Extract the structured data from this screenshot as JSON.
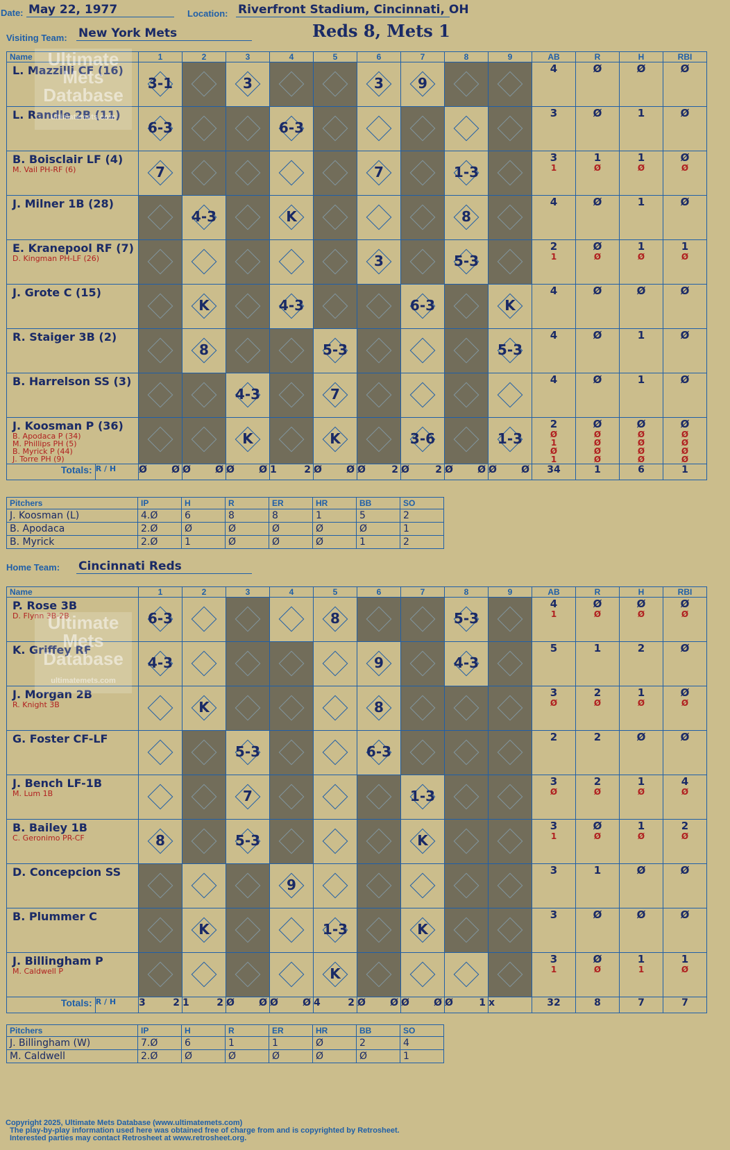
{
  "header": {
    "date_label": "Date:",
    "date": "May 22, 1977",
    "location_label": "Location:",
    "location": "Riverfront Stadium, Cincinnati, OH",
    "visiting_label": "Visiting Team:",
    "visiting_team": "New York Mets",
    "title": "Reds 8, Mets 1",
    "home_label": "Home Team:",
    "home_team": "Cincinnati Reds"
  },
  "cols": {
    "name": "Name",
    "innings": [
      "1",
      "2",
      "3",
      "4",
      "5",
      "6",
      "7",
      "8",
      "9"
    ],
    "ab": "AB",
    "r": "R",
    "h": "H",
    "rbi": "RBI",
    "totals": "Totals:",
    "r_lbl": "R",
    "h_lbl": "H"
  },
  "visitors": {
    "rows": [
      {
        "name": "L. Mazzilli CF (16)",
        "subs": [],
        "ab": [
          "4"
        ],
        "r": [
          "Ø"
        ],
        "h": [
          "Ø"
        ],
        "rbi": [
          "Ø"
        ]
      },
      {
        "name": "L. Randle 2B (11)",
        "subs": [],
        "ab": [
          "3"
        ],
        "r": [
          "Ø"
        ],
        "h": [
          "1"
        ],
        "rbi": [
          "Ø"
        ]
      },
      {
        "name": "B. Boisclair LF (4)",
        "subs": [
          "M. Vail PH-RF (6)"
        ],
        "ab": [
          "3",
          "1"
        ],
        "r": [
          "1",
          "Ø"
        ],
        "h": [
          "1",
          "Ø"
        ],
        "rbi": [
          "Ø",
          "Ø"
        ]
      },
      {
        "name": "J. Milner 1B (28)",
        "subs": [],
        "ab": [
          "4"
        ],
        "r": [
          "Ø"
        ],
        "h": [
          "1"
        ],
        "rbi": [
          "Ø"
        ]
      },
      {
        "name": "E. Kranepool RF (7)",
        "subs": [
          "D. Kingman PH-LF (26)"
        ],
        "ab": [
          "2",
          "1"
        ],
        "r": [
          "Ø",
          "Ø"
        ],
        "h": [
          "1",
          "Ø"
        ],
        "rbi": [
          "1",
          "Ø"
        ]
      },
      {
        "name": "J. Grote C (15)",
        "subs": [],
        "ab": [
          "4"
        ],
        "r": [
          "Ø"
        ],
        "h": [
          "Ø"
        ],
        "rbi": [
          "Ø"
        ]
      },
      {
        "name": "R. Staiger 3B (2)",
        "subs": [],
        "ab": [
          "4"
        ],
        "r": [
          "Ø"
        ],
        "h": [
          "1"
        ],
        "rbi": [
          "Ø"
        ]
      },
      {
        "name": "B. Harrelson SS (3)",
        "subs": [],
        "ab": [
          "4"
        ],
        "r": [
          "Ø"
        ],
        "h": [
          "1"
        ],
        "rbi": [
          "Ø"
        ]
      },
      {
        "name": "J. Koosman P (36)",
        "subs": [
          "B. Apodaca P (34)",
          "M. Phillips PH (5)",
          "B. Myrick P (44)",
          "J. Torre PH (9)"
        ],
        "ab": [
          "2",
          "Ø",
          "1",
          "Ø",
          "1"
        ],
        "r": [
          "Ø",
          "Ø",
          "Ø",
          "Ø",
          "Ø"
        ],
        "h": [
          "Ø",
          "Ø",
          "Ø",
          "Ø",
          "Ø"
        ],
        "rbi": [
          "Ø",
          "Ø",
          "Ø",
          "Ø",
          "Ø"
        ]
      }
    ],
    "cells": [
      [
        "3-1",
        "",
        "3",
        "",
        "",
        "3",
        "9",
        "",
        ""
      ],
      [
        "6-3",
        "",
        "",
        "6-3",
        "",
        "",
        "",
        "",
        ""
      ],
      [
        "7",
        "",
        "",
        "",
        "",
        "7",
        "",
        "1-3",
        ""
      ],
      [
        "",
        "4-3",
        "",
        "K",
        "",
        "",
        "",
        "8",
        ""
      ],
      [
        "",
        "",
        "",
        "",
        "",
        "3",
        "",
        "5-3",
        ""
      ],
      [
        "",
        "K",
        "",
        "4-3",
        "",
        "",
        "6-3",
        "",
        "K"
      ],
      [
        "",
        "8",
        "",
        "",
        "5-3",
        "",
        "",
        "",
        "5-3"
      ],
      [
        "",
        "",
        "4-3",
        "",
        "7",
        "",
        "",
        "",
        ""
      ],
      [
        "",
        "",
        "K",
        "",
        "K",
        "",
        "3-6",
        "",
        "1-3"
      ]
    ],
    "inning_notes": {
      "pitcher_first": "Billingham",
      "pitcher_change": "Caldwell"
    },
    "totals": [
      [
        "Ø",
        "Ø"
      ],
      [
        "Ø",
        "Ø"
      ],
      [
        "Ø",
        "Ø"
      ],
      [
        "1",
        "2"
      ],
      [
        "Ø",
        "Ø"
      ],
      [
        "Ø",
        "2"
      ],
      [
        "Ø",
        "2"
      ],
      [
        "Ø",
        "Ø"
      ],
      [
        "Ø",
        "Ø"
      ]
    ],
    "totals_sum": {
      "ab": "34",
      "r": "1",
      "h": "6",
      "rbi": "1"
    }
  },
  "visitor_pitchers": {
    "headers": [
      "Pitchers",
      "IP",
      "H",
      "R",
      "ER",
      "HR",
      "BB",
      "SO"
    ],
    "rows": [
      [
        "J. Koosman (L)",
        "4.Ø",
        "6",
        "8",
        "8",
        "1",
        "5",
        "2"
      ],
      [
        "B. Apodaca",
        "2.Ø",
        "Ø",
        "Ø",
        "Ø",
        "Ø",
        "Ø",
        "1"
      ],
      [
        "B. Myrick",
        "2.Ø",
        "1",
        "Ø",
        "Ø",
        "Ø",
        "1",
        "2"
      ]
    ]
  },
  "home": {
    "rows": [
      {
        "name": "P. Rose 3B",
        "subs": [
          "D. Flynn 3B-2B"
        ],
        "ab": [
          "4",
          "1"
        ],
        "r": [
          "Ø",
          "Ø"
        ],
        "h": [
          "Ø",
          "Ø"
        ],
        "rbi": [
          "Ø",
          "Ø"
        ]
      },
      {
        "name": "K. Griffey RF",
        "subs": [],
        "ab": [
          "5"
        ],
        "r": [
          "1"
        ],
        "h": [
          "2"
        ],
        "rbi": [
          "Ø"
        ]
      },
      {
        "name": "J. Morgan 2B",
        "subs": [
          "R. Knight 3B"
        ],
        "ab": [
          "3",
          "Ø"
        ],
        "r": [
          "2",
          "Ø"
        ],
        "h": [
          "1",
          "Ø"
        ],
        "rbi": [
          "Ø",
          "Ø"
        ]
      },
      {
        "name": "G. Foster CF-LF",
        "subs": [],
        "ab": [
          "2"
        ],
        "r": [
          "2"
        ],
        "h": [
          "Ø"
        ],
        "rbi": [
          "Ø"
        ]
      },
      {
        "name": "J. Bench LF-1B",
        "subs": [
          "M. Lum 1B"
        ],
        "ab": [
          "3",
          "Ø"
        ],
        "r": [
          "2",
          "Ø"
        ],
        "h": [
          "1",
          "Ø"
        ],
        "rbi": [
          "4",
          "Ø"
        ]
      },
      {
        "name": "B. Bailey 1B",
        "subs": [
          "C. Geronimo PR-CF"
        ],
        "ab": [
          "3",
          "1"
        ],
        "r": [
          "Ø",
          "Ø"
        ],
        "h": [
          "1",
          "Ø"
        ],
        "rbi": [
          "2",
          "Ø"
        ]
      },
      {
        "name": "D. Concepcion SS",
        "subs": [],
        "ab": [
          "3"
        ],
        "r": [
          "1"
        ],
        "h": [
          "Ø"
        ],
        "rbi": [
          "Ø"
        ]
      },
      {
        "name": "B. Plummer C",
        "subs": [],
        "ab": [
          "3"
        ],
        "r": [
          "Ø"
        ],
        "h": [
          "Ø"
        ],
        "rbi": [
          "Ø"
        ]
      },
      {
        "name": "J. Billingham P",
        "subs": [
          "M. Caldwell P"
        ],
        "ab": [
          "3",
          "1"
        ],
        "r": [
          "Ø",
          "Ø"
        ],
        "h": [
          "1",
          "1"
        ],
        "rbi": [
          "1",
          "Ø"
        ]
      }
    ],
    "cells": [
      [
        "6-3",
        "",
        "",
        "",
        "8",
        "",
        "",
        "5-3",
        ""
      ],
      [
        "4-3",
        "",
        "",
        "",
        "",
        "9",
        "",
        "4-3",
        ""
      ],
      [
        "",
        "K",
        "",
        "",
        "",
        "8",
        "",
        "",
        ""
      ],
      [
        "",
        "",
        "5-3",
        "",
        "",
        "6-3",
        "",
        "",
        ""
      ],
      [
        "",
        "",
        "7",
        "",
        "",
        "",
        "1-3",
        "",
        ""
      ],
      [
        "8",
        "",
        "5-3",
        "",
        "",
        "",
        "K",
        "",
        ""
      ],
      [
        "",
        "",
        "",
        "9",
        "",
        "",
        "",
        "",
        ""
      ],
      [
        "",
        "K",
        "",
        "",
        "1-3",
        "",
        "K",
        "",
        ""
      ],
      [
        "",
        "",
        "",
        "",
        "K",
        "",
        "",
        "",
        ""
      ]
    ],
    "inning_notes": {
      "pitcher_first": "Koosman",
      "pitcher_change_5": "Apodaca",
      "pitcher_change_7": "Myrick"
    },
    "totals": [
      [
        "3",
        "2"
      ],
      [
        "1",
        "2"
      ],
      [
        "Ø",
        "Ø"
      ],
      [
        "Ø",
        "Ø"
      ],
      [
        "4",
        "2"
      ],
      [
        "Ø",
        "Ø"
      ],
      [
        "Ø",
        "Ø"
      ],
      [
        "Ø",
        "1"
      ],
      [
        "x",
        ""
      ]
    ],
    "totals_sum": {
      "ab": "32",
      "r": "8",
      "h": "7",
      "rbi": "7"
    }
  },
  "home_pitchers": {
    "headers": [
      "Pitchers",
      "IP",
      "H",
      "R",
      "ER",
      "HR",
      "BB",
      "SO"
    ],
    "rows": [
      [
        "J. Billingham (W)",
        "7.Ø",
        "6",
        "1",
        "1",
        "Ø",
        "2",
        "4"
      ],
      [
        "M. Caldwell",
        "2.Ø",
        "Ø",
        "Ø",
        "Ø",
        "Ø",
        "Ø",
        "1"
      ]
    ]
  },
  "footer": [
    "Copyright 2025, Ultimate Mets Database (www.ultimatemets.com)",
    "The play-by-play information used here was obtained free of charge from and is copyrighted by Retrosheet.",
    "Interested parties may contact Retrosheet at www.retrosheet.org."
  ],
  "watermark": {
    "line1": "Ultimate",
    "line2": "Mets",
    "line3": "Database",
    "line4": "ultimatemets.com"
  }
}
